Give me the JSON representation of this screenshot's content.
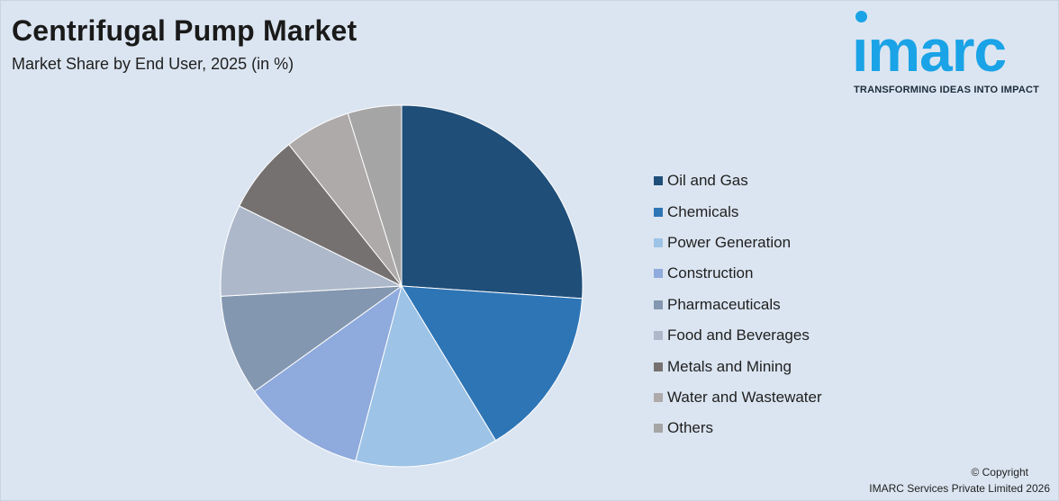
{
  "header": {
    "title": "Centrifugal Pump Market",
    "subtitle": "Market Share by End User, 2025 (in %)"
  },
  "logo": {
    "wordmark": "ımarc",
    "tagline": "TRANSFORMING IDEAS INTO IMPACT",
    "color": "#1aa3e6"
  },
  "footer": {
    "copyright": "© Copyright",
    "company": "IMARC Services Private Limited 2026"
  },
  "chart_data": {
    "type": "pie",
    "title": "Centrifugal Pump Market",
    "subtitle": "Market Share by End User, 2025 (in %)",
    "legend_position": "right",
    "start_angle": "12 o'clock, clockwise",
    "categories": [
      "Oil and Gas",
      "Chemicals",
      "Power Generation",
      "Construction",
      "Pharmaceuticals",
      "Food and Beverages",
      "Metals and Mining",
      "Water and Wastewater",
      "Others"
    ],
    "values": [
      26.1,
      15.2,
      12.8,
      11.0,
      9.0,
      8.2,
      7.0,
      5.9,
      4.8
    ],
    "colors": [
      "#1f4e79",
      "#2e75b6",
      "#9dc3e6",
      "#8faadc",
      "#8497b0",
      "#adb9ca",
      "#767171",
      "#aeaaaa",
      "#a5a5a5"
    ]
  }
}
